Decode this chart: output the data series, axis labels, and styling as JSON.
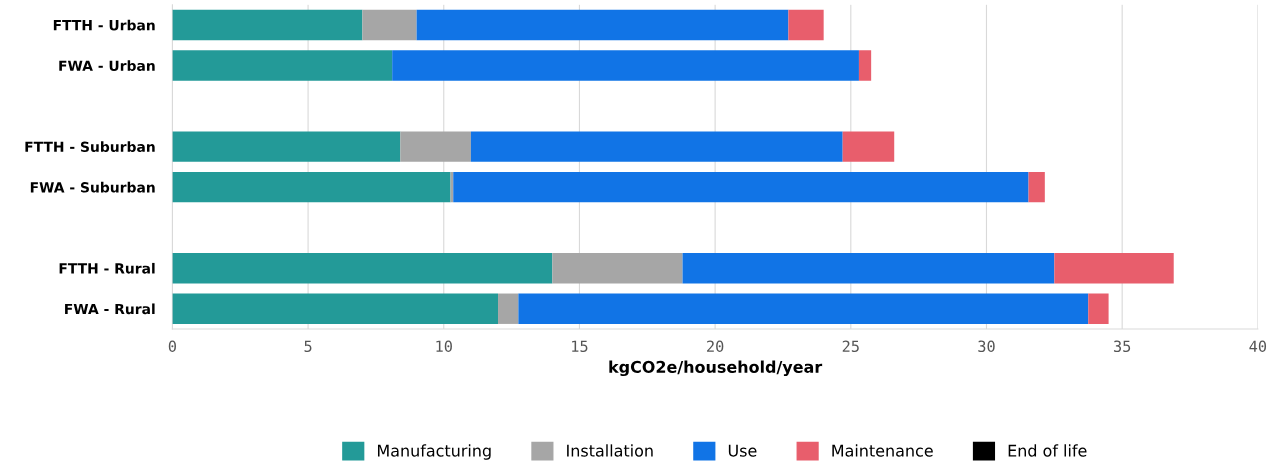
{
  "chart_data": {
    "type": "bar",
    "orientation": "horizontal",
    "stacked": true,
    "xlabel": "kgCO2e/household/year",
    "categories": [
      "FTTH - Urban",
      "FWA - Urban",
      null,
      "FTTH - Suburban",
      "FWA - Suburban",
      null,
      "FTTH - Rural",
      "FWA - Rural"
    ],
    "series": [
      {
        "name": "Manufacturing",
        "color": "#239a98",
        "values": [
          7.0,
          8.1,
          null,
          8.4,
          10.25,
          null,
          14.0,
          12.0
        ]
      },
      {
        "name": "Installation",
        "color": "#a6a6a6",
        "values": [
          2.0,
          0,
          null,
          2.6,
          0.1,
          null,
          4.8,
          0.75
        ]
      },
      {
        "name": "Use",
        "color": "#1174e6",
        "values": [
          13.7,
          17.2,
          null,
          13.7,
          21.2,
          null,
          13.7,
          21.0
        ]
      },
      {
        "name": "Maintenance",
        "color": "#e85e6c",
        "values": [
          1.3,
          0.45,
          null,
          1.9,
          0.6,
          null,
          4.4,
          0.75
        ]
      },
      {
        "name": "End of life",
        "color": "#000000",
        "values": [
          0,
          0,
          null,
          0,
          0,
          null,
          0,
          0
        ]
      }
    ],
    "xlim": [
      0,
      40
    ],
    "xticks": [
      0,
      5,
      10,
      15,
      20,
      25,
      30,
      35,
      40
    ],
    "grid": "x",
    "legend": "bottom"
  }
}
